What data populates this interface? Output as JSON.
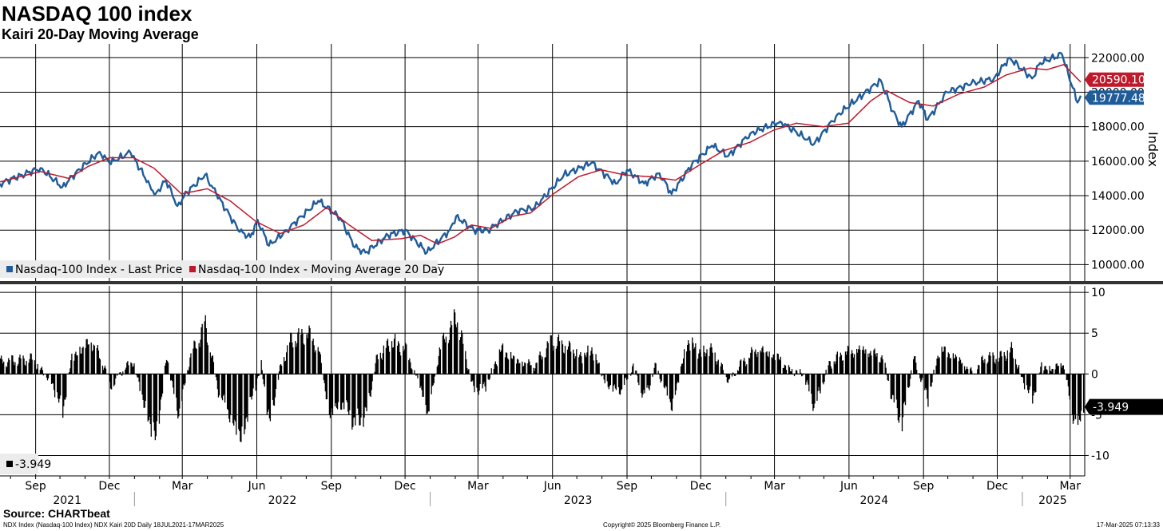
{
  "title": "NASDAQ 100 index",
  "subtitle": "Kairi 20-Day Moving Average",
  "source": "Source: CHARTbeat",
  "footer": {
    "left": "NDX Index (Nasdaq-100 Index) NDX Kairi 20D  Daily 18JUL2021-17MAR2025",
    "center": "Copyright© 2025 Bloomberg Finance L.P.",
    "right": "17-Mar-2025 07:13:33"
  },
  "chart_data": [
    {
      "type": "line",
      "ylabel": "Index",
      "ylim": [
        9000,
        22800
      ],
      "yticks": [
        "10000.00",
        "12000.00",
        "14000.00",
        "16000.00",
        "18000.00",
        "20000.00",
        "22000.00"
      ],
      "grid": true,
      "legend_placement": "bottom-left",
      "x_start": "2021-07-19",
      "x_end": "2025-03-17",
      "series": [
        {
          "name": "Nasdaq-100 Index - Last Price",
          "color": "#1f5c99",
          "points": [
            [
              "2021-07-19",
              14700
            ],
            [
              "2021-08-15",
              15200
            ],
            [
              "2021-09-07",
              15600
            ],
            [
              "2021-10-04",
              14500
            ],
            [
              "2021-10-20",
              15300
            ],
            [
              "2021-11-19",
              16550
            ],
            [
              "2021-12-01",
              15900
            ],
            [
              "2021-12-27",
              16500
            ],
            [
              "2022-01-20",
              14600
            ],
            [
              "2022-01-27",
              14100
            ],
            [
              "2022-02-09",
              14900
            ],
            [
              "2022-02-23",
              13400
            ],
            [
              "2022-03-07",
              14200
            ],
            [
              "2022-03-29",
              15200
            ],
            [
              "2022-04-12",
              14100
            ],
            [
              "2022-05-11",
              11900
            ],
            [
              "2022-05-24",
              11600
            ],
            [
              "2022-06-02",
              12600
            ],
            [
              "2022-06-16",
              11100
            ],
            [
              "2022-07-08",
              12000
            ],
            [
              "2022-08-16",
              13700
            ],
            [
              "2022-09-12",
              12700
            ],
            [
              "2022-09-30",
              11000
            ],
            [
              "2022-10-13",
              10700
            ],
            [
              "2022-11-10",
              11700
            ],
            [
              "2022-12-01",
              12000
            ],
            [
              "2022-12-28",
              10700
            ],
            [
              "2023-01-25",
              12000
            ],
            [
              "2023-02-02",
              12800
            ],
            [
              "2023-02-24",
              12000
            ],
            [
              "2023-03-13",
              12000
            ],
            [
              "2023-04-18",
              13100
            ],
            [
              "2023-05-10",
              13300
            ],
            [
              "2023-06-15",
              15200
            ],
            [
              "2023-07-19",
              15900
            ],
            [
              "2023-08-18",
              14700
            ],
            [
              "2023-09-01",
              15500
            ],
            [
              "2023-09-22",
              14700
            ],
            [
              "2023-10-11",
              15300
            ],
            [
              "2023-10-26",
              14100
            ],
            [
              "2023-11-20",
              15800
            ],
            [
              "2023-12-15",
              16900
            ],
            [
              "2024-01-04",
              16300
            ],
            [
              "2024-01-31",
              17600
            ],
            [
              "2024-03-08",
              18300
            ],
            [
              "2024-04-19",
              17000
            ],
            [
              "2024-05-16",
              18600
            ],
            [
              "2024-07-10",
              20700
            ],
            [
              "2024-07-25",
              18900
            ],
            [
              "2024-08-05",
              18000
            ],
            [
              "2024-08-26",
              19500
            ],
            [
              "2024-09-06",
              18400
            ],
            [
              "2024-09-30",
              20000
            ],
            [
              "2024-10-30",
              20500
            ],
            [
              "2024-11-27",
              20800
            ],
            [
              "2024-12-16",
              22000
            ],
            [
              "2025-01-13",
              20800
            ],
            [
              "2025-01-23",
              21700
            ],
            [
              "2025-02-19",
              22200
            ],
            [
              "2025-03-10",
              19400
            ],
            [
              "2025-03-14",
              19800
            ]
          ]
        },
        {
          "name": "Nasdaq-100 Index - Moving Average 20 Day",
          "color": "#c0192c",
          "points": [
            [
              "2021-07-19",
              14800
            ],
            [
              "2021-09-07",
              15400
            ],
            [
              "2021-10-12",
              15000
            ],
            [
              "2021-11-05",
              15700
            ],
            [
              "2021-12-01",
              16200
            ],
            [
              "2021-12-31",
              16200
            ],
            [
              "2022-01-25",
              15600
            ],
            [
              "2022-02-28",
              14100
            ],
            [
              "2022-04-01",
              14400
            ],
            [
              "2022-04-29",
              13700
            ],
            [
              "2022-05-31",
              12500
            ],
            [
              "2022-06-30",
              11800
            ],
            [
              "2022-07-29",
              12300
            ],
            [
              "2022-08-26",
              13300
            ],
            [
              "2022-09-23",
              12300
            ],
            [
              "2022-10-21",
              11400
            ],
            [
              "2022-11-25",
              11500
            ],
            [
              "2022-12-20",
              11700
            ],
            [
              "2023-01-10",
              11200
            ],
            [
              "2023-01-31",
              11600
            ],
            [
              "2023-02-21",
              12300
            ],
            [
              "2023-03-17",
              12100
            ],
            [
              "2023-04-12",
              12800
            ],
            [
              "2023-05-05",
              13000
            ],
            [
              "2023-06-02",
              14100
            ],
            [
              "2023-07-03",
              15100
            ],
            [
              "2023-07-31",
              15500
            ],
            [
              "2023-08-29",
              15200
            ],
            [
              "2023-09-29",
              15100
            ],
            [
              "2023-10-31",
              14900
            ],
            [
              "2023-11-30",
              15800
            ],
            [
              "2023-12-29",
              16600
            ],
            [
              "2024-01-31",
              17100
            ],
            [
              "2024-02-29",
              17800
            ],
            [
              "2024-03-28",
              18200
            ],
            [
              "2024-04-30",
              18000
            ],
            [
              "2024-05-31",
              18200
            ],
            [
              "2024-06-28",
              19500
            ],
            [
              "2024-07-17",
              20100
            ],
            [
              "2024-08-15",
              19400
            ],
            [
              "2024-09-13",
              19200
            ],
            [
              "2024-10-15",
              19900
            ],
            [
              "2024-11-15",
              20300
            ],
            [
              "2024-12-12",
              21000
            ],
            [
              "2025-01-10",
              21400
            ],
            [
              "2025-01-31",
              21300
            ],
            [
              "2025-02-21",
              21600
            ],
            [
              "2025-03-14",
              20590.1
            ]
          ]
        }
      ],
      "last_values": {
        "ma20": "20590.10",
        "price": "19777.48"
      }
    },
    {
      "type": "bar",
      "ylim": [
        -12.5,
        10.8
      ],
      "yticks": [
        "10",
        "5",
        "0",
        "-5",
        "-10"
      ],
      "grid": true,
      "legend_placement": "bottom-left",
      "series": [
        {
          "name": "-3.949",
          "color": "#000000",
          "anchors": [
            [
              "2021-07-19",
              1.5
            ],
            [
              "2021-08-27",
              1.8
            ],
            [
              "2021-09-20",
              -1
            ],
            [
              "2021-10-04",
              -4.5
            ],
            [
              "2021-10-15",
              2
            ],
            [
              "2021-11-08",
              4
            ],
            [
              "2021-11-22",
              1.5
            ],
            [
              "2021-12-03",
              -1.5
            ],
            [
              "2021-12-17",
              0.5
            ],
            [
              "2021-12-30",
              1.5
            ],
            [
              "2022-01-13",
              -4
            ],
            [
              "2022-01-27",
              -8
            ],
            [
              "2022-02-09",
              2
            ],
            [
              "2022-02-24",
              -5
            ],
            [
              "2022-03-10",
              2
            ],
            [
              "2022-03-29",
              6
            ],
            [
              "2022-04-14",
              -2
            ],
            [
              "2022-04-28",
              -5
            ],
            [
              "2022-05-12",
              -8
            ],
            [
              "2022-05-25",
              -3
            ],
            [
              "2022-06-06",
              1
            ],
            [
              "2022-06-16",
              -6
            ],
            [
              "2022-06-30",
              1
            ],
            [
              "2022-07-12",
              4
            ],
            [
              "2022-08-02",
              5
            ],
            [
              "2022-08-16",
              3
            ],
            [
              "2022-08-29",
              -5
            ],
            [
              "2022-09-14",
              -3.5
            ],
            [
              "2022-09-30",
              -6
            ],
            [
              "2022-10-13",
              -5
            ],
            [
              "2022-10-27",
              2
            ],
            [
              "2022-11-14",
              4
            ],
            [
              "2022-12-01",
              3
            ],
            [
              "2022-12-21",
              -2
            ],
            [
              "2022-12-29",
              -5
            ],
            [
              "2023-01-12",
              3
            ],
            [
              "2023-02-02",
              7
            ],
            [
              "2023-02-23",
              -2
            ],
            [
              "2023-03-10",
              -1.5
            ],
            [
              "2023-03-29",
              3
            ],
            [
              "2023-04-19",
              1.5
            ],
            [
              "2023-05-10",
              1
            ],
            [
              "2023-05-30",
              4
            ],
            [
              "2023-06-16",
              3.5
            ],
            [
              "2023-07-07",
              2
            ],
            [
              "2023-07-19",
              3
            ],
            [
              "2023-08-07",
              -1.5
            ],
            [
              "2023-08-25",
              -2
            ],
            [
              "2023-09-08",
              1
            ],
            [
              "2023-09-22",
              -3
            ],
            [
              "2023-10-06",
              1
            ],
            [
              "2023-10-26",
              -4
            ],
            [
              "2023-11-14",
              4
            ],
            [
              "2023-12-01",
              2.5
            ],
            [
              "2023-12-14",
              3
            ],
            [
              "2024-01-05",
              -1
            ],
            [
              "2024-01-17",
              1
            ],
            [
              "2024-02-08",
              3
            ],
            [
              "2024-03-05",
              2
            ],
            [
              "2024-03-18",
              0.5
            ],
            [
              "2024-04-05",
              0
            ],
            [
              "2024-04-19",
              -4
            ],
            [
              "2024-05-06",
              1
            ],
            [
              "2024-05-24",
              2.5
            ],
            [
              "2024-06-17",
              3
            ],
            [
              "2024-07-12",
              2
            ],
            [
              "2024-07-24",
              -3
            ],
            [
              "2024-08-05",
              -6
            ],
            [
              "2024-08-19",
              2
            ],
            [
              "2024-09-06",
              -3
            ],
            [
              "2024-09-20",
              3
            ],
            [
              "2024-10-11",
              2
            ],
            [
              "2024-11-01",
              0
            ],
            [
              "2024-11-15",
              2
            ],
            [
              "2024-12-04",
              2
            ],
            [
              "2024-12-18",
              3
            ],
            [
              "2025-01-02",
              -1
            ],
            [
              "2025-01-13",
              -3
            ],
            [
              "2025-01-24",
              1
            ],
            [
              "2025-02-07",
              0.5
            ],
            [
              "2025-02-19",
              1.5
            ],
            [
              "2025-02-26",
              -2
            ],
            [
              "2025-03-10",
              -7.5
            ],
            [
              "2025-03-14",
              -3.949
            ]
          ]
        }
      ],
      "last_value_label": "-3.949"
    }
  ],
  "x_axis": {
    "months": [
      [
        "2021-09-01",
        "Sep"
      ],
      [
        "2021-12-01",
        "Dec"
      ],
      [
        "2022-03-01",
        "Mar"
      ],
      [
        "2022-06-01",
        "Jun"
      ],
      [
        "2022-09-01",
        "Sep"
      ],
      [
        "2022-12-01",
        "Dec"
      ],
      [
        "2023-03-01",
        "Mar"
      ],
      [
        "2023-06-01",
        "Jun"
      ],
      [
        "2023-09-01",
        "Sep"
      ],
      [
        "2023-12-01",
        "Dec"
      ],
      [
        "2024-03-01",
        "Mar"
      ],
      [
        "2024-06-01",
        "Jun"
      ],
      [
        "2024-09-01",
        "Sep"
      ],
      [
        "2024-12-01",
        "Dec"
      ],
      [
        "2025-03-01",
        "Mar"
      ]
    ],
    "years": [
      [
        "2021-07-19",
        "2022-01-01",
        "2021"
      ],
      [
        "2022-01-01",
        "2023-01-01",
        "2022"
      ],
      [
        "2023-01-01",
        "2024-01-01",
        "2023"
      ],
      [
        "2024-01-01",
        "2025-01-01",
        "2024"
      ],
      [
        "2025-01-01",
        "2025-03-17",
        "2025"
      ]
    ]
  }
}
